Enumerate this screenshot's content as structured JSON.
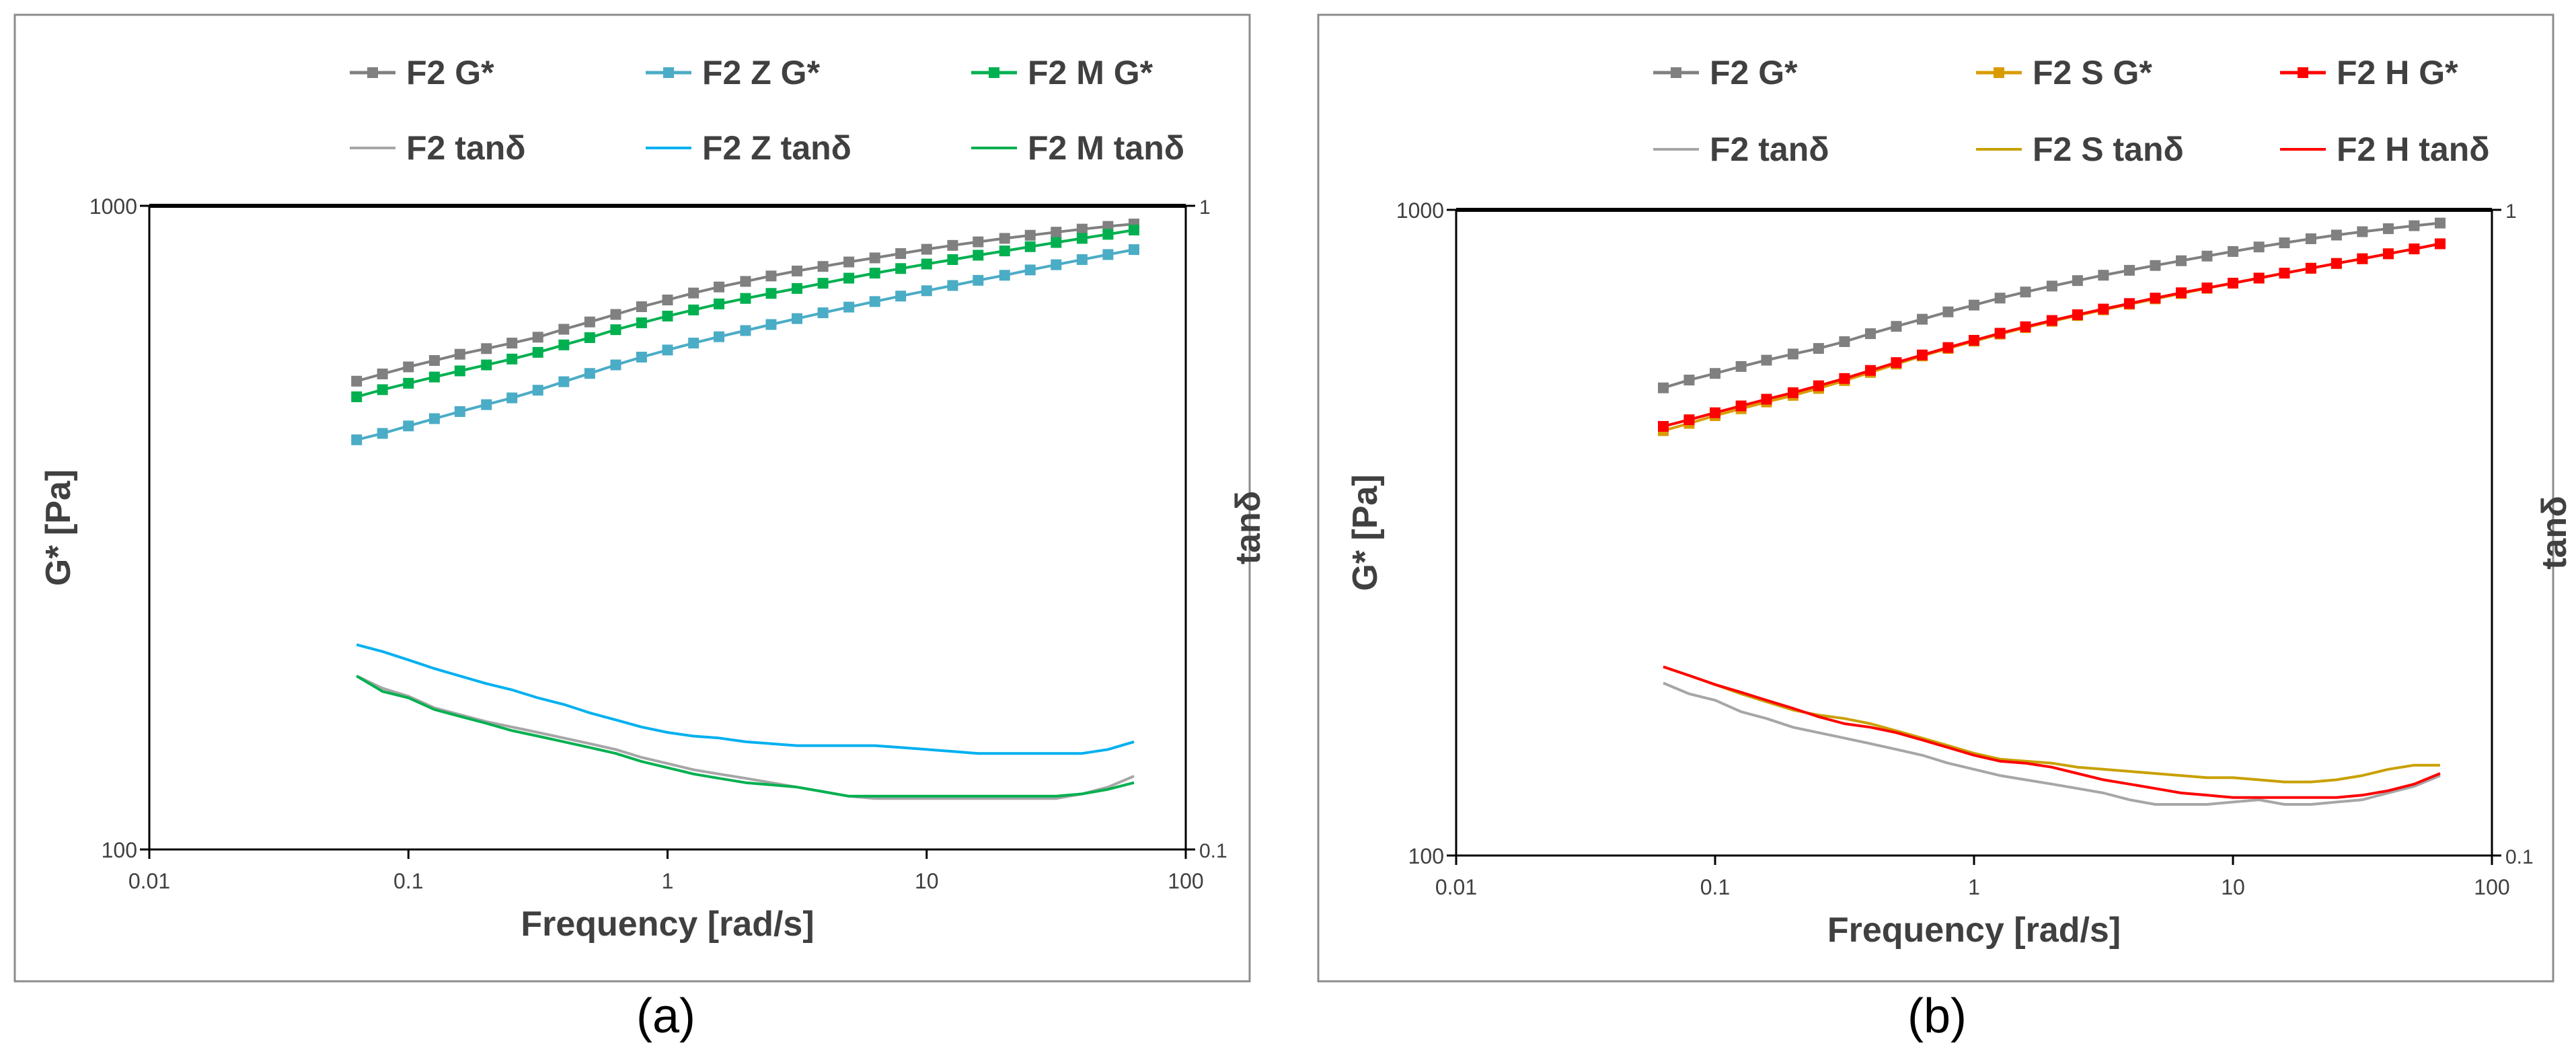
{
  "charts": [
    {
      "caption": "(a)",
      "xlabel": "Frequency [rad/s]",
      "ylabel": "G* [Pa]",
      "y2label": "tanδ",
      "x_ticks": [
        "0.01",
        "0.1",
        "1",
        "10",
        "100"
      ],
      "y_ticks": [
        "1000",
        "100"
      ],
      "y2_ticks": [
        "1",
        "0.1"
      ],
      "legend": [
        [
          "F2 G*",
          "F2 Z G*",
          "F2 M G*"
        ],
        [
          "F2 tanδ",
          "F2 Z tanδ",
          "F2 M tanδ"
        ]
      ]
    },
    {
      "caption": "(b)",
      "xlabel": "Frequency [rad/s]",
      "ylabel": "G* [Pa]",
      "y2label": "tanδ",
      "x_ticks": [
        "0.01",
        "0.1",
        "1",
        "10",
        "100"
      ],
      "y_ticks": [
        "1000",
        "100"
      ],
      "y2_ticks": [
        "1",
        "0.1"
      ],
      "legend": [
        [
          "F2 G*",
          "F2 S G*",
          "F2 H G*"
        ],
        [
          "F2 tanδ",
          "F2 S tanδ",
          "F2 H tanδ"
        ]
      ]
    }
  ],
  "chart_data": [
    {
      "type": "line",
      "x_scale": "log",
      "y_scale": "log",
      "y2_scale": "log",
      "xlim": [
        0.01,
        100
      ],
      "ylim": [
        100,
        1000
      ],
      "y2lim": [
        0.1,
        1
      ],
      "grid": false,
      "legend_position": "top",
      "x": [
        0.0631,
        0.0794,
        0.1,
        0.126,
        0.158,
        0.2,
        0.251,
        0.316,
        0.398,
        0.501,
        0.631,
        0.794,
        1.0,
        1.26,
        1.58,
        2.0,
        2.51,
        3.16,
        3.98,
        5.01,
        6.31,
        7.94,
        10.0,
        12.6,
        15.8,
        20.0,
        25.1,
        31.6,
        39.8,
        50.1,
        63.1
      ],
      "series": [
        {
          "name": "F2 G*",
          "axis": "left",
          "marker": true,
          "color": "#808080",
          "values": [
            534,
            548,
            562,
            575,
            588,
            600,
            612,
            625,
            643,
            660,
            678,
            697,
            714,
            732,
            748,
            763,
            778,
            792,
            805,
            818,
            830,
            843,
            856,
            868,
            879,
            890,
            900,
            910,
            920,
            929,
            937
          ]
        },
        {
          "name": "F2 Z G*",
          "axis": "left",
          "marker": true,
          "color": "#4bacc6",
          "values": [
            433,
            443,
            455,
            467,
            479,
            491,
            503,
            517,
            533,
            549,
            566,
            582,
            597,
            612,
            626,
            640,
            654,
            668,
            682,
            696,
            710,
            724,
            738,
            752,
            766,
            780,
            795,
            810,
            825,
            840,
            855
          ]
        },
        {
          "name": "F2 M G*",
          "axis": "left",
          "marker": true,
          "color": "#00b050",
          "values": [
            505,
            518,
            530,
            542,
            554,
            566,
            578,
            592,
            608,
            624,
            642,
            658,
            674,
            689,
            704,
            718,
            731,
            744,
            758,
            772,
            786,
            799,
            812,
            825,
            838,
            851,
            864,
            877,
            890,
            903,
            917
          ]
        },
        {
          "name": "F2 tanδ",
          "axis": "right",
          "marker": false,
          "color": "#a6a6a6",
          "values": [
            0.186,
            0.178,
            0.173,
            0.166,
            0.162,
            0.158,
            0.155,
            0.152,
            0.149,
            0.146,
            0.143,
            0.139,
            0.136,
            0.133,
            0.131,
            0.129,
            0.127,
            0.125,
            0.123,
            0.121,
            0.12,
            0.12,
            0.12,
            0.12,
            0.12,
            0.12,
            0.12,
            0.12,
            0.122,
            0.125,
            0.13
          ]
        },
        {
          "name": "F2 Z tanδ",
          "axis": "right",
          "marker": false,
          "color": "#00b0f0",
          "values": [
            0.208,
            0.203,
            0.197,
            0.191,
            0.186,
            0.181,
            0.177,
            0.172,
            0.168,
            0.163,
            0.159,
            0.155,
            0.152,
            0.15,
            0.149,
            0.147,
            0.146,
            0.145,
            0.145,
            0.145,
            0.145,
            0.144,
            0.143,
            0.142,
            0.141,
            0.141,
            0.141,
            0.141,
            0.141,
            0.143,
            0.147
          ]
        },
        {
          "name": "F2 M tanδ",
          "axis": "right",
          "marker": false,
          "color": "#00b050",
          "values": [
            0.186,
            0.176,
            0.172,
            0.165,
            0.161,
            0.157,
            0.153,
            0.15,
            0.147,
            0.144,
            0.141,
            0.137,
            0.134,
            0.131,
            0.129,
            0.127,
            0.126,
            0.125,
            0.123,
            0.121,
            0.121,
            0.121,
            0.121,
            0.121,
            0.121,
            0.121,
            0.121,
            0.121,
            0.122,
            0.124,
            0.127
          ]
        }
      ]
    },
    {
      "type": "line",
      "x_scale": "log",
      "y_scale": "log",
      "y2_scale": "log",
      "xlim": [
        0.01,
        100
      ],
      "ylim": [
        100,
        1000
      ],
      "y2lim": [
        0.1,
        1
      ],
      "grid": false,
      "legend_position": "top",
      "x": [
        0.0631,
        0.0794,
        0.1,
        0.126,
        0.158,
        0.2,
        0.251,
        0.316,
        0.398,
        0.501,
        0.631,
        0.794,
        1.0,
        1.26,
        1.58,
        2.0,
        2.51,
        3.16,
        3.98,
        5.01,
        6.31,
        7.94,
        10.0,
        12.6,
        15.8,
        20.0,
        25.1,
        31.6,
        39.8,
        50.1,
        63.1
      ],
      "series": [
        {
          "name": "F2 G*",
          "axis": "left",
          "marker": true,
          "color": "#808080",
          "values": [
            530,
            545,
            558,
            572,
            585,
            598,
            610,
            625,
            643,
            660,
            677,
            695,
            712,
            730,
            746,
            762,
            777,
            792,
            806,
            820,
            834,
            848,
            862,
            876,
            889,
            902,
            914,
            925,
            935,
            945,
            954
          ]
        },
        {
          "name": "F2 S G*",
          "axis": "left",
          "marker": true,
          "color": "#d99c00",
          "values": [
            455,
            467,
            480,
            492,
            504,
            516,
            529,
            544,
            560,
            577,
            594,
            610,
            626,
            642,
            657,
            672,
            686,
            700,
            714,
            728,
            742,
            756,
            770,
            784,
            798,
            812,
            826,
            840,
            855,
            870,
            886
          ]
        },
        {
          "name": "F2 H G*",
          "axis": "left",
          "marker": true,
          "color": "#ff0000",
          "values": [
            462,
            473,
            485,
            497,
            509,
            521,
            534,
            548,
            564,
            580,
            596,
            612,
            628,
            644,
            659,
            674,
            688,
            702,
            716,
            730,
            744,
            757,
            770,
            784,
            798,
            812,
            826,
            840,
            855,
            870,
            886
          ]
        },
        {
          "name": "F2 tanδ",
          "axis": "right",
          "marker": false,
          "color": "#a6a6a6",
          "values": [
            0.185,
            0.178,
            0.174,
            0.167,
            0.163,
            0.158,
            0.155,
            0.152,
            0.149,
            0.146,
            0.143,
            0.139,
            0.136,
            0.133,
            0.131,
            0.129,
            0.127,
            0.125,
            0.122,
            0.12,
            0.12,
            0.12,
            0.121,
            0.122,
            0.12,
            0.12,
            0.121,
            0.122,
            0.125,
            0.128,
            0.133
          ]
        },
        {
          "name": "F2 S tanδ",
          "axis": "right",
          "marker": false,
          "color": "#c9a000",
          "values": [
            0.196,
            0.19,
            0.184,
            0.178,
            0.173,
            0.168,
            0.165,
            0.163,
            0.16,
            0.156,
            0.152,
            0.148,
            0.144,
            0.141,
            0.14,
            0.139,
            0.137,
            0.136,
            0.135,
            0.134,
            0.133,
            0.132,
            0.132,
            0.131,
            0.13,
            0.13,
            0.131,
            0.133,
            0.136,
            0.138,
            0.138
          ]
        },
        {
          "name": "F2 H tanδ",
          "axis": "right",
          "marker": false,
          "color": "#ff0000",
          "values": [
            0.196,
            0.19,
            0.184,
            0.179,
            0.174,
            0.169,
            0.164,
            0.16,
            0.158,
            0.155,
            0.151,
            0.147,
            0.143,
            0.14,
            0.139,
            0.137,
            0.134,
            0.131,
            0.129,
            0.127,
            0.125,
            0.124,
            0.123,
            0.123,
            0.123,
            0.123,
            0.123,
            0.124,
            0.126,
            0.129,
            0.134
          ]
        }
      ]
    }
  ]
}
